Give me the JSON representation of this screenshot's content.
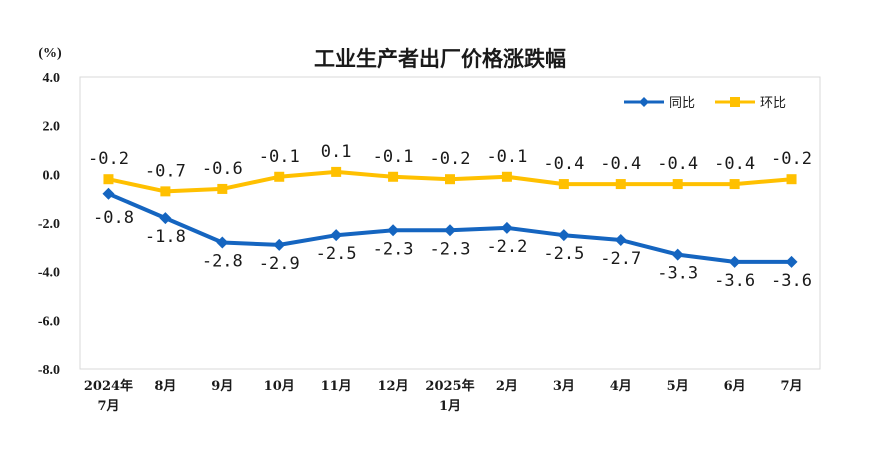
{
  "chart_data": {
    "type": "line",
    "title": "工业生产者出厂价格涨跌幅",
    "ylabel": "(%)",
    "xlabel": "",
    "ylim": [
      -8.0,
      4.0
    ],
    "yticks": [
      "4.0",
      "2.0",
      "0.0",
      "-2.0",
      "-4.0",
      "-6.0",
      "-8.0"
    ],
    "categories": [
      [
        "2024年",
        "7月"
      ],
      [
        "8月"
      ],
      [
        "9月"
      ],
      [
        "10月"
      ],
      [
        "11月"
      ],
      [
        "12月"
      ],
      [
        "2025年",
        "1月"
      ],
      [
        "2月"
      ],
      [
        "3月"
      ],
      [
        "4月"
      ],
      [
        "5月"
      ],
      [
        "6月"
      ],
      [
        "7月"
      ]
    ],
    "series": [
      {
        "name": "同比",
        "color": "#1565c0",
        "marker": "diamond",
        "values": [
          -0.8,
          -1.8,
          -2.8,
          -2.9,
          -2.5,
          -2.3,
          -2.3,
          -2.2,
          -2.5,
          -2.7,
          -3.3,
          -3.6,
          -3.6
        ],
        "labels": [
          "-0.8",
          "-1.8",
          "-2.8",
          "-2.9",
          "-2.5",
          "-2.3",
          "-2.3",
          "-2.2",
          "-2.5",
          "-2.7",
          "-3.3",
          "-3.6",
          "-3.6"
        ]
      },
      {
        "name": "环比",
        "color": "#ffc000",
        "marker": "square",
        "values": [
          -0.2,
          -0.7,
          -0.6,
          -0.1,
          0.1,
          -0.1,
          -0.2,
          -0.1,
          -0.4,
          -0.4,
          -0.4,
          -0.4,
          -0.2
        ],
        "labels": [
          "-0.2",
          "-0.7",
          "-0.6",
          "-0.1",
          "0.1",
          "-0.1",
          "-0.2",
          "-0.1",
          "-0.4",
          "-0.4",
          "-0.4",
          "-0.4",
          "-0.2"
        ]
      }
    ],
    "legend": "top-right",
    "grid": false
  }
}
